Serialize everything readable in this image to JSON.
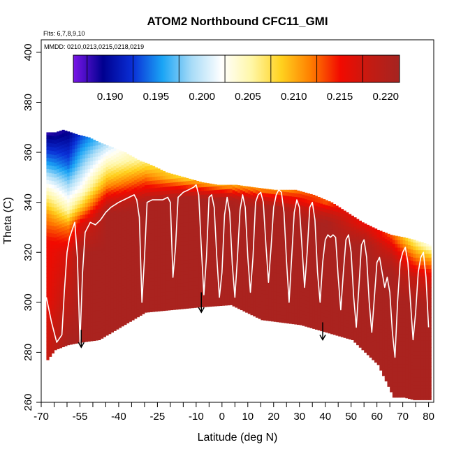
{
  "chart_data": {
    "type": "heatmap",
    "title": "ATOM2 Northbound CFC11_GMI",
    "subtitle_flights": "Flts: 6,7,8,9,10",
    "subtitle_dates": "MMDD: 0210,0213,0215,0218,0219",
    "xlabel": "Latitude (deg N)",
    "ylabel": "Theta (C)",
    "xlim": [
      -70,
      82
    ],
    "ylim": [
      260,
      405
    ],
    "x_ticks": [
      -70,
      -55,
      -40,
      -25,
      -10,
      0,
      10,
      20,
      30,
      40,
      50,
      60,
      70,
      80
    ],
    "x_ticks_minor": [
      -65,
      -60,
      -50,
      -45,
      -35,
      -30,
      -20,
      -15,
      -5,
      5,
      15,
      25,
      35,
      45,
      55,
      65,
      75
    ],
    "y_ticks": [
      260,
      280,
      300,
      320,
      340,
      360,
      380,
      400
    ],
    "colorbar": {
      "min": 0.186,
      "max": 0.2215,
      "ticks": [
        0.19,
        0.195,
        0.2,
        0.205,
        0.21,
        0.215,
        0.22
      ],
      "tick_labels": [
        "0.190",
        "0.195",
        "0.200",
        "0.205",
        "0.210",
        "0.215",
        "0.220"
      ],
      "stops": [
        "#7a16e8",
        "#00008f",
        "#0a2fd6",
        "#1aa4f5",
        "#a9dcf7",
        "#ffffff",
        "#fff7a8",
        "#ffd21f",
        "#ff7f00",
        "#f20a00",
        "#c41b12",
        "#a52421"
      ]
    },
    "field": {
      "top_boundary": [
        [
          -68,
          368
        ],
        [
          -65,
          368
        ],
        [
          -62,
          369
        ],
        [
          -59,
          368
        ],
        [
          -56,
          367
        ],
        [
          -52,
          366
        ],
        [
          -48,
          364
        ],
        [
          -43,
          362
        ],
        [
          -38,
          360
        ],
        [
          -33,
          357
        ],
        [
          -28,
          355
        ],
        [
          -22,
          352
        ],
        [
          -15,
          350
        ],
        [
          -8,
          348
        ],
        [
          -2,
          347
        ],
        [
          5,
          347
        ],
        [
          12,
          346
        ],
        [
          20,
          345
        ],
        [
          28,
          345
        ],
        [
          35,
          343
        ],
        [
          42,
          340
        ],
        [
          48,
          336
        ],
        [
          54,
          332
        ],
        [
          60,
          329
        ],
        [
          65,
          327
        ],
        [
          70,
          326
        ],
        [
          74,
          325
        ],
        [
          77,
          324
        ],
        [
          80,
          323
        ]
      ],
      "bottom_boundary": [
        [
          -68,
          277
        ],
        [
          -65,
          281
        ],
        [
          -60,
          283
        ],
        [
          -55,
          284
        ],
        [
          -48,
          285
        ],
        [
          -30,
          296
        ],
        [
          -10,
          298
        ],
        [
          3,
          299
        ],
        [
          15,
          293
        ],
        [
          30,
          291
        ],
        [
          40,
          288
        ],
        [
          50,
          285
        ],
        [
          60,
          275
        ],
        [
          66,
          262
        ],
        [
          70,
          262
        ],
        [
          74,
          261
        ],
        [
          78,
          261
        ],
        [
          80,
          261
        ]
      ],
      "value_columns": [
        {
          "lat": -68,
          "values": [
            [
              368,
              0.188
            ],
            [
              355,
              0.196
            ],
            [
              345,
              0.204
            ],
            [
              335,
              0.211
            ],
            [
              325,
              0.215
            ],
            [
              300,
              0.216
            ],
            [
              280,
              0.218
            ]
          ]
        },
        {
          "lat": -60,
          "values": [
            [
              368,
              0.189
            ],
            [
              355,
              0.194
            ],
            [
              345,
              0.2
            ],
            [
              337,
              0.205
            ],
            [
              330,
              0.212
            ],
            [
              320,
              0.217
            ],
            [
              300,
              0.219
            ],
            [
              283,
              0.221
            ]
          ]
        },
        {
          "lat": -55,
          "values": [
            [
              367,
              0.193
            ],
            [
              355,
              0.198
            ],
            [
              345,
              0.203
            ],
            [
              338,
              0.209
            ],
            [
              332,
              0.216
            ],
            [
              320,
              0.221
            ],
            [
              284,
              0.221
            ]
          ]
        },
        {
          "lat": -45,
          "values": [
            [
              364,
              0.199
            ],
            [
              355,
              0.205
            ],
            [
              347,
              0.211
            ],
            [
              342,
              0.216
            ],
            [
              336,
              0.221
            ],
            [
              285,
              0.221
            ]
          ]
        },
        {
          "lat": -30,
          "values": [
            [
              357,
              0.206
            ],
            [
              350,
              0.212
            ],
            [
              344,
              0.217
            ],
            [
              340,
              0.221
            ],
            [
              296,
              0.221
            ]
          ]
        },
        {
          "lat": -15,
          "values": [
            [
              350,
              0.208
            ],
            [
              346,
              0.215
            ],
            [
              342,
              0.221
            ],
            [
              297,
              0.221
            ]
          ]
        },
        {
          "lat": 0,
          "values": [
            [
              347,
              0.21
            ],
            [
              344,
              0.216
            ],
            [
              341,
              0.221
            ],
            [
              299,
              0.221
            ]
          ]
        },
        {
          "lat": 20,
          "values": [
            [
              345,
              0.211
            ],
            [
              342,
              0.216
            ],
            [
              338,
              0.221
            ],
            [
              292,
              0.221
            ]
          ]
        },
        {
          "lat": 40,
          "values": [
            [
              340,
              0.213
            ],
            [
              336,
              0.218
            ],
            [
              332,
              0.221
            ],
            [
              288,
              0.221
            ]
          ]
        },
        {
          "lat": 55,
          "values": [
            [
              332,
              0.215
            ],
            [
              328,
              0.218
            ],
            [
              323,
              0.221
            ],
            [
              282,
              0.221
            ]
          ]
        },
        {
          "lat": 65,
          "values": [
            [
              327,
              0.213
            ],
            [
              323,
              0.216
            ],
            [
              318,
              0.219
            ],
            [
              312,
              0.221
            ],
            [
              262,
              0.221
            ]
          ]
        },
        {
          "lat": 75,
          "values": [
            [
              325,
              0.205
            ],
            [
              320,
              0.21
            ],
            [
              315,
              0.214
            ],
            [
              310,
              0.218
            ],
            [
              300,
              0.221
            ],
            [
              261,
              0.221
            ]
          ]
        },
        {
          "lat": 80,
          "values": [
            [
              323,
              0.203
            ],
            [
              318,
              0.21
            ],
            [
              312,
              0.215
            ],
            [
              305,
              0.219
            ],
            [
              295,
              0.221
            ],
            [
              261,
              0.221
            ]
          ]
        }
      ]
    },
    "flight_track": [
      [
        -68,
        302
      ],
      [
        -66,
        292
      ],
      [
        -64,
        284
      ],
      [
        -62,
        287
      ],
      [
        -61,
        305
      ],
      [
        -60,
        320
      ],
      [
        -59,
        326
      ],
      [
        -57,
        332
      ],
      [
        -56,
        318
      ],
      [
        -55,
        284
      ],
      [
        -54,
        312
      ],
      [
        -53,
        328
      ],
      [
        -51,
        332
      ],
      [
        -49,
        331
      ],
      [
        -47,
        333
      ],
      [
        -45,
        336
      ],
      [
        -43,
        338
      ],
      [
        -40,
        340
      ],
      [
        -38,
        341
      ],
      [
        -36,
        342
      ],
      [
        -34,
        343
      ],
      [
        -33,
        341
      ],
      [
        -32,
        334
      ],
      [
        -31,
        300
      ],
      [
        -30,
        318
      ],
      [
        -29,
        340
      ],
      [
        -27,
        341
      ],
      [
        -25,
        341
      ],
      [
        -23,
        341
      ],
      [
        -21,
        342
      ],
      [
        -20,
        340
      ],
      [
        -19,
        310
      ],
      [
        -18,
        322
      ],
      [
        -17,
        342
      ],
      [
        -15,
        344
      ],
      [
        -13,
        345
      ],
      [
        -11,
        346
      ],
      [
        -10,
        347
      ],
      [
        -9,
        343
      ],
      [
        -8,
        322
      ],
      [
        -7,
        303
      ],
      [
        -6,
        318
      ],
      [
        -5,
        342
      ],
      [
        -4,
        343
      ],
      [
        -3,
        338
      ],
      [
        -2,
        318
      ],
      [
        -1,
        302
      ],
      [
        0,
        312
      ],
      [
        1,
        335
      ],
      [
        2,
        342
      ],
      [
        3,
        336
      ],
      [
        4,
        315
      ],
      [
        5,
        302
      ],
      [
        6,
        318
      ],
      [
        7,
        337
      ],
      [
        8,
        343
      ],
      [
        9,
        338
      ],
      [
        10,
        318
      ],
      [
        11,
        304
      ],
      [
        12,
        318
      ],
      [
        13,
        340
      ],
      [
        14,
        343
      ],
      [
        15,
        344
      ],
      [
        16,
        340
      ],
      [
        17,
        323
      ],
      [
        18,
        308
      ],
      [
        19,
        322
      ],
      [
        20,
        338
      ],
      [
        21,
        343
      ],
      [
        22,
        345
      ],
      [
        23,
        344
      ],
      [
        24,
        336
      ],
      [
        25,
        316
      ],
      [
        26,
        300
      ],
      [
        27,
        318
      ],
      [
        28,
        336
      ],
      [
        29,
        341
      ],
      [
        30,
        338
      ],
      [
        31,
        322
      ],
      [
        32,
        306
      ],
      [
        33,
        320
      ],
      [
        34,
        338
      ],
      [
        35,
        340
      ],
      [
        36,
        333
      ],
      [
        37,
        312
      ],
      [
        38,
        300
      ],
      [
        39,
        316
      ],
      [
        40,
        325
      ],
      [
        41,
        327
      ],
      [
        42,
        326
      ],
      [
        43,
        327
      ],
      [
        44,
        326
      ],
      [
        45,
        310
      ],
      [
        46,
        297
      ],
      [
        47,
        312
      ],
      [
        48,
        325
      ],
      [
        49,
        327
      ],
      [
        50,
        320
      ],
      [
        51,
        302
      ],
      [
        52,
        290
      ],
      [
        53,
        306
      ],
      [
        54,
        323
      ],
      [
        55,
        325
      ],
      [
        56,
        318
      ],
      [
        57,
        300
      ],
      [
        58,
        288
      ],
      [
        59,
        302
      ],
      [
        60,
        316
      ],
      [
        61,
        318
      ],
      [
        62,
        312
      ],
      [
        63,
        306
      ],
      [
        64,
        310
      ],
      [
        65,
        304
      ],
      [
        66,
        288
      ],
      [
        67,
        278
      ],
      [
        68,
        300
      ],
      [
        69,
        316
      ],
      [
        70,
        320
      ],
      [
        71,
        322
      ],
      [
        72,
        316
      ],
      [
        73,
        300
      ],
      [
        74,
        285
      ],
      [
        75,
        296
      ],
      [
        76,
        312
      ],
      [
        77,
        318
      ],
      [
        78,
        320
      ],
      [
        79,
        310
      ],
      [
        80,
        290
      ]
    ],
    "arrows": [
      {
        "lat": -54.5,
        "theta_from": 289,
        "theta_to": 282
      },
      {
        "lat": -8,
        "theta_from": 304,
        "theta_to": 296
      },
      {
        "lat": 39,
        "theta_from": 292,
        "theta_to": 285
      }
    ],
    "colors": {
      "axis": "#000000",
      "track": "#ffffff",
      "arrow": "#000000",
      "background": "#ffffff"
    }
  }
}
